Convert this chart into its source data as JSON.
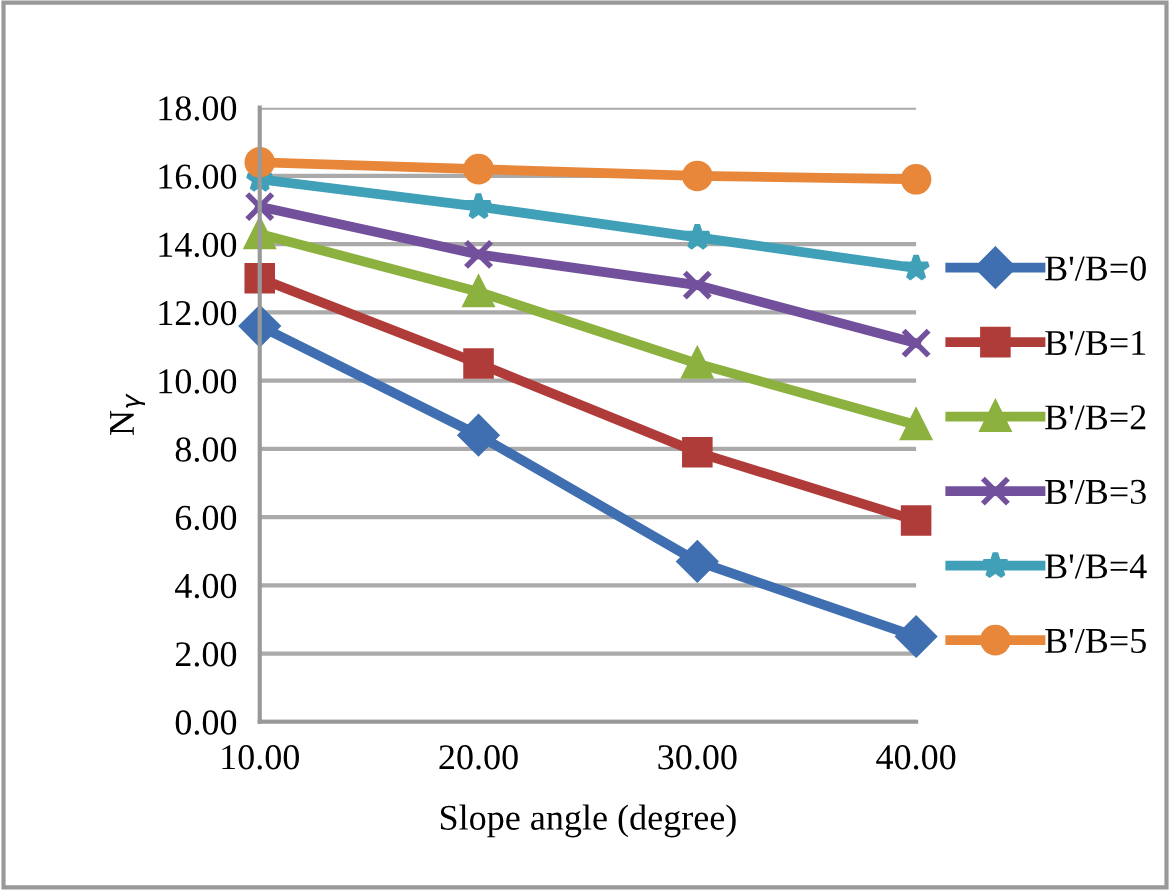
{
  "chart_data": {
    "type": "line",
    "xlabel": "Slope angle (degree)",
    "ylabel": "N$_{γ}$",
    "categories": [
      "10.00",
      "20.00",
      "30.00",
      "40.00"
    ],
    "ylim": [
      0,
      18
    ],
    "yticks": [
      {
        "value": 0,
        "label": "0.00"
      },
      {
        "value": 2,
        "label": "2.00"
      },
      {
        "value": 4,
        "label": "4.00"
      },
      {
        "value": 6,
        "label": "6.00"
      },
      {
        "value": 8,
        "label": "8.00"
      },
      {
        "value": 10,
        "label": "10.00"
      },
      {
        "value": 12,
        "label": "12.00"
      },
      {
        "value": 14,
        "label": "14.00"
      },
      {
        "value": 16,
        "label": "16.00"
      },
      {
        "value": 18,
        "label": "18.00"
      }
    ],
    "grid": "y",
    "legend": "right",
    "series": [
      {
        "name": "B'/B=0",
        "color": "#3f6fb0",
        "marker": "diamond",
        "values": [
          11.6,
          8.4,
          4.7,
          2.5
        ]
      },
      {
        "name": "B'/B=1",
        "color": "#b03c3a",
        "marker": "square",
        "values": [
          13.0,
          10.5,
          7.9,
          5.9
        ]
      },
      {
        "name": "B'/B=2",
        "color": "#8cb13e",
        "marker": "triangle",
        "values": [
          14.3,
          12.6,
          10.5,
          8.7
        ]
      },
      {
        "name": "B'/B=3",
        "color": "#73509c",
        "marker": "cross",
        "values": [
          15.1,
          13.7,
          12.8,
          11.1
        ]
      },
      {
        "name": "B'/B=4",
        "color": "#40a0b8",
        "marker": "star",
        "values": [
          15.9,
          15.1,
          14.2,
          13.3
        ]
      },
      {
        "name": "B'/B=5",
        "color": "#e8873a",
        "marker": "circle",
        "values": [
          16.4,
          16.2,
          16.0,
          15.9
        ]
      }
    ]
  }
}
